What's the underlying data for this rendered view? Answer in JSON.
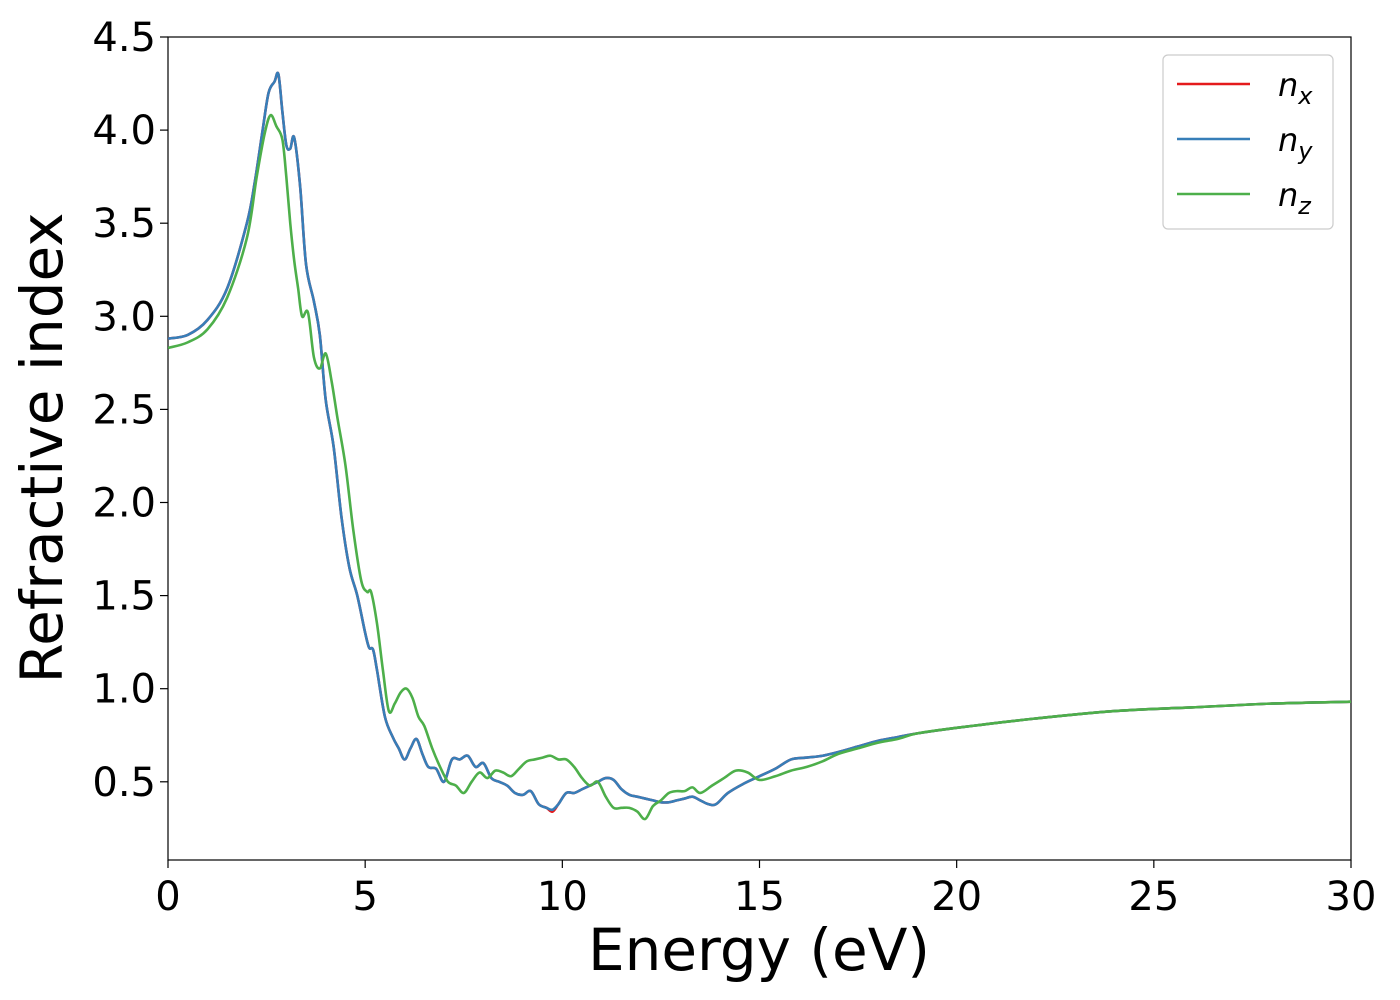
{
  "chart_data": {
    "type": "line",
    "title": "",
    "xlabel": "Energy (eV)",
    "ylabel": "Refractive index",
    "xlim": [
      0,
      30
    ],
    "ylim": [
      0.08,
      4.5
    ],
    "xticks": [
      0,
      5,
      10,
      15,
      20,
      25,
      30
    ],
    "xtick_labels": [
      "0",
      "5",
      "10",
      "15",
      "20",
      "25",
      "30"
    ],
    "yticks": [
      0.5,
      1.0,
      1.5,
      2.0,
      2.5,
      3.0,
      3.5,
      4.0,
      4.5
    ],
    "ytick_labels": [
      "0.5",
      "1.0",
      "1.5",
      "2.0",
      "2.5",
      "3.0",
      "3.5",
      "4.0",
      "4.5"
    ],
    "grid": false,
    "legend_position": "top-right",
    "series": [
      {
        "name": "n_x",
        "label_base": "n",
        "label_sub": "x",
        "color": "#e41a1c",
        "x": [
          0,
          0.5,
          1.0,
          1.5,
          2.0,
          2.2,
          2.4,
          2.55,
          2.7,
          2.8,
          2.9,
          3.0,
          3.1,
          3.2,
          3.35,
          3.5,
          3.7,
          3.85,
          4.0,
          4.2,
          4.4,
          4.6,
          4.8,
          5.0,
          5.1,
          5.2,
          5.3,
          5.5,
          5.7,
          5.85,
          6.0,
          6.15,
          6.3,
          6.45,
          6.6,
          6.8,
          7.0,
          7.2,
          7.4,
          7.6,
          7.8,
          8.0,
          8.2,
          8.4,
          8.6,
          8.8,
          9.0,
          9.2,
          9.4,
          9.6,
          9.75,
          9.9,
          10.1,
          10.3,
          10.5,
          10.7,
          10.9,
          11.1,
          11.3,
          11.5,
          11.7,
          11.9,
          12.1,
          12.3,
          12.5,
          12.7,
          12.9,
          13.1,
          13.3,
          13.5,
          13.7,
          13.9,
          14.2,
          14.6,
          15.0,
          15.4,
          15.8,
          16.2,
          16.6,
          17.0,
          17.5,
          18.0,
          18.5,
          19.0,
          20.0,
          22.0,
          24.0,
          26.0,
          28.0,
          30.0
        ],
        "values": [
          2.88,
          2.9,
          2.98,
          3.15,
          3.5,
          3.72,
          4.0,
          4.2,
          4.26,
          4.3,
          4.1,
          3.92,
          3.9,
          3.96,
          3.7,
          3.28,
          3.08,
          2.9,
          2.55,
          2.3,
          1.92,
          1.65,
          1.5,
          1.3,
          1.22,
          1.21,
          1.1,
          0.85,
          0.74,
          0.68,
          0.62,
          0.68,
          0.73,
          0.65,
          0.58,
          0.57,
          0.5,
          0.62,
          0.62,
          0.64,
          0.58,
          0.6,
          0.52,
          0.5,
          0.48,
          0.44,
          0.43,
          0.45,
          0.38,
          0.36,
          0.34,
          0.38,
          0.44,
          0.44,
          0.46,
          0.48,
          0.5,
          0.52,
          0.51,
          0.46,
          0.43,
          0.42,
          0.41,
          0.4,
          0.39,
          0.39,
          0.4,
          0.41,
          0.42,
          0.4,
          0.38,
          0.38,
          0.44,
          0.49,
          0.53,
          0.57,
          0.62,
          0.63,
          0.64,
          0.66,
          0.69,
          0.72,
          0.74,
          0.76,
          0.79,
          0.84,
          0.88,
          0.9,
          0.92,
          0.93
        ]
      },
      {
        "name": "n_y",
        "label_base": "n",
        "label_sub": "y",
        "color": "#377eb8",
        "x": [
          0,
          0.5,
          1.0,
          1.5,
          2.0,
          2.2,
          2.4,
          2.55,
          2.7,
          2.8,
          2.9,
          3.0,
          3.1,
          3.2,
          3.35,
          3.5,
          3.7,
          3.85,
          4.0,
          4.2,
          4.4,
          4.6,
          4.8,
          5.0,
          5.1,
          5.2,
          5.3,
          5.5,
          5.7,
          5.85,
          6.0,
          6.15,
          6.3,
          6.45,
          6.6,
          6.8,
          7.0,
          7.2,
          7.4,
          7.6,
          7.8,
          8.0,
          8.2,
          8.4,
          8.6,
          8.8,
          9.0,
          9.2,
          9.4,
          9.6,
          9.75,
          9.9,
          10.1,
          10.3,
          10.5,
          10.7,
          10.9,
          11.1,
          11.3,
          11.5,
          11.7,
          11.9,
          12.1,
          12.3,
          12.5,
          12.7,
          12.9,
          13.1,
          13.3,
          13.5,
          13.7,
          13.9,
          14.2,
          14.6,
          15.0,
          15.4,
          15.8,
          16.2,
          16.6,
          17.0,
          17.5,
          18.0,
          18.5,
          19.0,
          20.0,
          22.0,
          24.0,
          26.0,
          28.0,
          30.0
        ],
        "values": [
          2.88,
          2.9,
          2.98,
          3.15,
          3.5,
          3.72,
          4.0,
          4.2,
          4.26,
          4.3,
          4.1,
          3.92,
          3.9,
          3.96,
          3.7,
          3.28,
          3.08,
          2.9,
          2.55,
          2.3,
          1.92,
          1.65,
          1.5,
          1.3,
          1.22,
          1.21,
          1.1,
          0.85,
          0.74,
          0.68,
          0.62,
          0.68,
          0.73,
          0.65,
          0.58,
          0.57,
          0.5,
          0.62,
          0.62,
          0.64,
          0.58,
          0.6,
          0.52,
          0.5,
          0.48,
          0.44,
          0.43,
          0.45,
          0.38,
          0.36,
          0.35,
          0.38,
          0.44,
          0.44,
          0.46,
          0.48,
          0.5,
          0.52,
          0.51,
          0.46,
          0.43,
          0.42,
          0.41,
          0.4,
          0.39,
          0.39,
          0.4,
          0.41,
          0.42,
          0.4,
          0.38,
          0.38,
          0.44,
          0.49,
          0.53,
          0.57,
          0.62,
          0.63,
          0.64,
          0.66,
          0.69,
          0.72,
          0.74,
          0.76,
          0.79,
          0.84,
          0.88,
          0.9,
          0.92,
          0.93
        ]
      },
      {
        "name": "n_z",
        "label_base": "n",
        "label_sub": "z",
        "color": "#4daf4a",
        "x": [
          0,
          0.5,
          1.0,
          1.5,
          2.0,
          2.25,
          2.45,
          2.6,
          2.75,
          2.9,
          3.0,
          3.1,
          3.2,
          3.3,
          3.4,
          3.55,
          3.7,
          3.85,
          4.0,
          4.15,
          4.3,
          4.5,
          4.7,
          4.9,
          5.05,
          5.15,
          5.3,
          5.45,
          5.6,
          5.75,
          5.9,
          6.05,
          6.2,
          6.35,
          6.5,
          6.7,
          6.9,
          7.1,
          7.3,
          7.5,
          7.7,
          7.9,
          8.1,
          8.3,
          8.5,
          8.7,
          8.9,
          9.1,
          9.3,
          9.5,
          9.7,
          9.9,
          10.1,
          10.3,
          10.5,
          10.7,
          10.9,
          11.1,
          11.3,
          11.5,
          11.7,
          11.9,
          12.1,
          12.3,
          12.5,
          12.7,
          12.9,
          13.1,
          13.3,
          13.5,
          13.8,
          14.1,
          14.4,
          14.7,
          15.0,
          15.4,
          15.8,
          16.2,
          16.6,
          17.0,
          17.5,
          18.0,
          18.5,
          19.0,
          20.0,
          22.0,
          24.0,
          26.0,
          28.0,
          30.0
        ],
        "values": [
          2.83,
          2.86,
          2.93,
          3.1,
          3.42,
          3.75,
          3.98,
          4.08,
          4.02,
          3.95,
          3.75,
          3.5,
          3.3,
          3.15,
          3.0,
          3.02,
          2.78,
          2.72,
          2.8,
          2.65,
          2.45,
          2.2,
          1.85,
          1.58,
          1.52,
          1.52,
          1.35,
          1.1,
          0.88,
          0.92,
          0.98,
          1.0,
          0.95,
          0.85,
          0.8,
          0.68,
          0.58,
          0.5,
          0.48,
          0.44,
          0.5,
          0.55,
          0.52,
          0.56,
          0.55,
          0.53,
          0.57,
          0.61,
          0.62,
          0.63,
          0.64,
          0.62,
          0.62,
          0.58,
          0.52,
          0.48,
          0.5,
          0.42,
          0.36,
          0.36,
          0.36,
          0.34,
          0.3,
          0.37,
          0.4,
          0.44,
          0.45,
          0.45,
          0.47,
          0.44,
          0.48,
          0.52,
          0.56,
          0.55,
          0.51,
          0.53,
          0.56,
          0.58,
          0.61,
          0.65,
          0.68,
          0.71,
          0.73,
          0.76,
          0.79,
          0.84,
          0.88,
          0.9,
          0.92,
          0.93
        ]
      }
    ]
  }
}
